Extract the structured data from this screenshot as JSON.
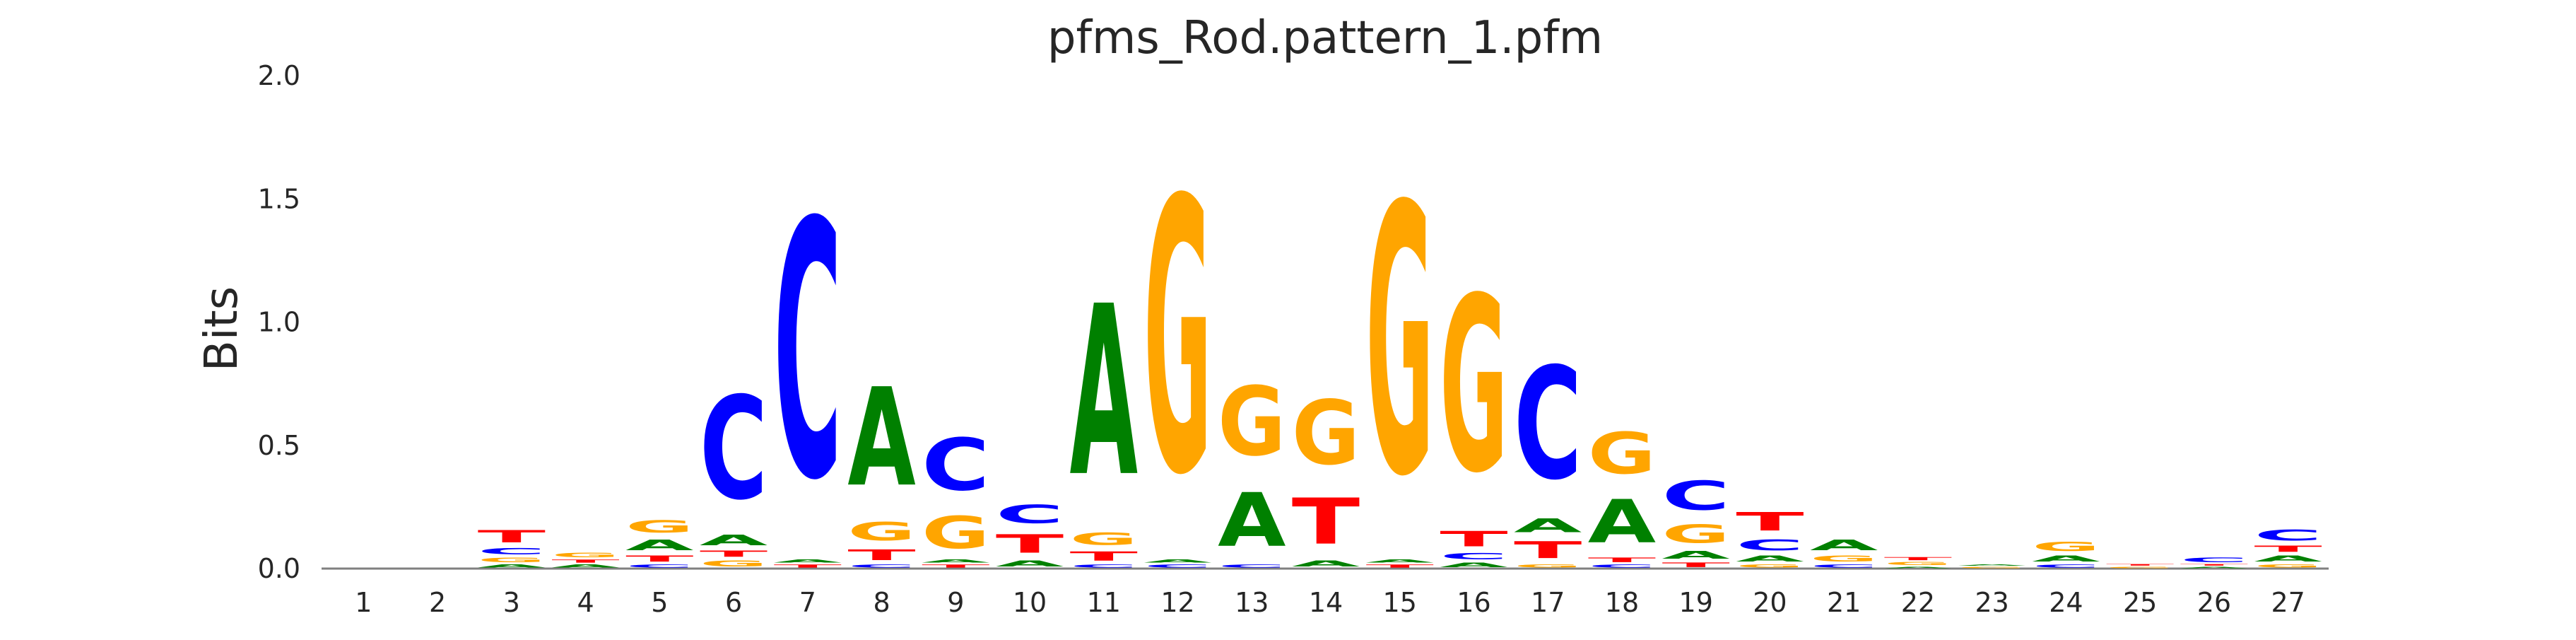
{
  "chart_data": {
    "type": "sequence-logo",
    "title": "pfms_Rod.pattern_1.pfm",
    "xlabel": "",
    "ylabel": "Bits",
    "ylim": [
      0,
      2.0
    ],
    "yticks": [
      "0.0",
      "0.5",
      "1.0",
      "1.5",
      "2.0"
    ],
    "grid": false,
    "colors": {
      "A": "#008000",
      "C": "#0000ff",
      "G": "#ffa500",
      "T": "#ff0000"
    },
    "positions": [
      {
        "label": "1",
        "stack": []
      },
      {
        "label": "2",
        "stack": []
      },
      {
        "label": "3",
        "stack": [
          [
            "A",
            0.02
          ],
          [
            "G",
            0.03
          ],
          [
            "C",
            0.04
          ],
          [
            "T",
            0.08
          ]
        ]
      },
      {
        "label": "4",
        "stack": [
          [
            "A",
            0.02
          ],
          [
            "T",
            0.02
          ],
          [
            "G",
            0.03
          ]
        ]
      },
      {
        "label": "5",
        "stack": [
          [
            "C",
            0.02
          ],
          [
            "T",
            0.04
          ],
          [
            "A",
            0.07
          ],
          [
            "G",
            0.08
          ]
        ]
      },
      {
        "label": "6",
        "stack": [
          [
            "G",
            0.04
          ],
          [
            "T",
            0.04
          ],
          [
            "A",
            0.07
          ],
          [
            "C",
            0.67
          ]
        ]
      },
      {
        "label": "7",
        "stack": [
          [
            "T",
            0.02
          ],
          [
            "A",
            0.02
          ],
          [
            "C",
            1.67
          ]
        ]
      },
      {
        "label": "8",
        "stack": [
          [
            "C",
            0.02
          ],
          [
            "T",
            0.07
          ],
          [
            "G",
            0.12
          ],
          [
            "A",
            0.64
          ]
        ]
      },
      {
        "label": "9",
        "stack": [
          [
            "T",
            0.02
          ],
          [
            "A",
            0.02
          ],
          [
            "G",
            0.21
          ],
          [
            "C",
            0.34
          ]
        ]
      },
      {
        "label": "10",
        "stack": [
          [
            "A",
            0.04
          ],
          [
            "T",
            0.12
          ],
          [
            "C",
            0.12
          ]
        ]
      },
      {
        "label": "11",
        "stack": [
          [
            "C",
            0.02
          ],
          [
            "T",
            0.06
          ],
          [
            "G",
            0.08
          ],
          [
            "A",
            1.11
          ]
        ]
      },
      {
        "label": "12",
        "stack": [
          [
            "C",
            0.02
          ],
          [
            "A",
            0.02
          ],
          [
            "G",
            1.78
          ]
        ]
      },
      {
        "label": "13",
        "stack": [
          [
            "C",
            0.02
          ],
          [
            "A",
            0.35
          ],
          [
            "G",
            0.45
          ]
        ]
      },
      {
        "label": "14",
        "stack": [
          [
            "A",
            0.04
          ],
          [
            "T",
            0.3
          ],
          [
            "G",
            0.42
          ]
        ]
      },
      {
        "label": "15",
        "stack": [
          [
            "T",
            0.02
          ],
          [
            "A",
            0.02
          ],
          [
            "G",
            1.75
          ]
        ]
      },
      {
        "label": "16",
        "stack": [
          [
            "A",
            0.03
          ],
          [
            "C",
            0.04
          ],
          [
            "T",
            0.1
          ],
          [
            "G",
            1.14
          ]
        ]
      },
      {
        "label": "17",
        "stack": [
          [
            "G",
            0.02
          ],
          [
            "T",
            0.11
          ],
          [
            "A",
            0.09
          ],
          [
            "C",
            0.73
          ]
        ]
      },
      {
        "label": "18",
        "stack": [
          [
            "C",
            0.02
          ],
          [
            "T",
            0.03
          ],
          [
            "A",
            0.28
          ],
          [
            "G",
            0.27
          ]
        ]
      },
      {
        "label": "19",
        "stack": [
          [
            "T",
            0.03
          ],
          [
            "A",
            0.05
          ],
          [
            "G",
            0.12
          ],
          [
            "C",
            0.19
          ]
        ]
      },
      {
        "label": "20",
        "stack": [
          [
            "G",
            0.02
          ],
          [
            "A",
            0.04
          ],
          [
            "C",
            0.07
          ],
          [
            "T",
            0.12
          ]
        ]
      },
      {
        "label": "21",
        "stack": [
          [
            "C",
            0.02
          ],
          [
            "G",
            0.04
          ],
          [
            "A",
            0.07
          ]
        ]
      },
      {
        "label": "22",
        "stack": [
          [
            "A",
            0.01
          ],
          [
            "G",
            0.02
          ],
          [
            "T",
            0.02
          ]
        ]
      },
      {
        "label": "23",
        "stack": [
          [
            "G",
            0.01
          ],
          [
            "A",
            0.01
          ]
        ]
      },
      {
        "label": "24",
        "stack": [
          [
            "C",
            0.02
          ],
          [
            "A",
            0.04
          ],
          [
            "G",
            0.06
          ]
        ]
      },
      {
        "label": "25",
        "stack": [
          [
            "G",
            0.01
          ],
          [
            "T",
            0.01
          ]
        ]
      },
      {
        "label": "26",
        "stack": [
          [
            "A",
            0.01
          ],
          [
            "T",
            0.01
          ],
          [
            "C",
            0.03
          ]
        ]
      },
      {
        "label": "27",
        "stack": [
          [
            "G",
            0.02
          ],
          [
            "A",
            0.04
          ],
          [
            "T",
            0.04
          ],
          [
            "C",
            0.07
          ]
        ]
      }
    ]
  }
}
